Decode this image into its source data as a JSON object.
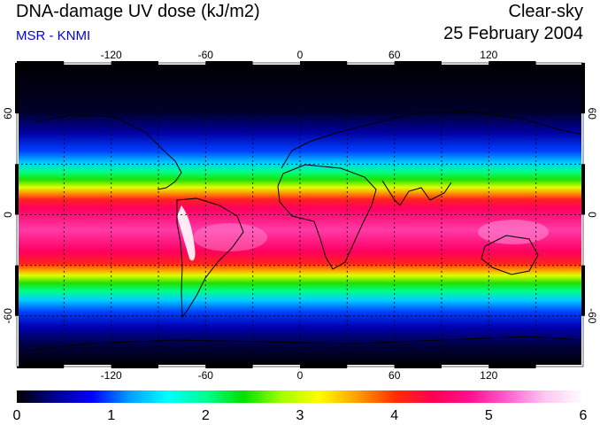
{
  "header": {
    "title": "DNA-damage UV dose (kJ/m2)",
    "subtitle": "MSR - KNMI",
    "condition": "Clear-sky",
    "date": "25 February 2004"
  },
  "map": {
    "projection": "equirectangular",
    "lon_range": [
      -180,
      180
    ],
    "lat_range": [
      -90,
      90
    ],
    "lon_ticks": [
      "-120",
      "-60",
      "0",
      "60",
      "120"
    ],
    "lat_ticks": [
      "60",
      "0",
      "-60"
    ],
    "grid": "dashed, every 30 degrees"
  },
  "colorbar": {
    "min": 0,
    "max": 6,
    "labels": [
      "0",
      "1",
      "2",
      "3",
      "4",
      "5",
      "6"
    ],
    "colors": [
      "#000000",
      "#00008f",
      "#0000ff",
      "#00a0ff",
      "#00ffff",
      "#00ff90",
      "#00e000",
      "#a0ff00",
      "#ffff00",
      "#ffa000",
      "#ff3000",
      "#ff0050",
      "#ff1090",
      "#ff60d0",
      "#ffc8f4",
      "#ffffff"
    ]
  }
}
